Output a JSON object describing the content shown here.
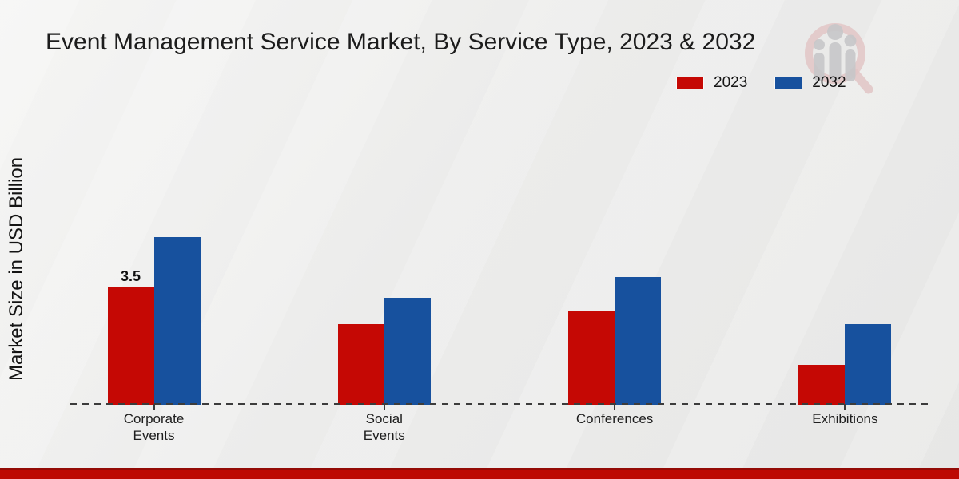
{
  "title": "Event Management Service Market, By Service Type, 2023 & 2032",
  "ylabel": "Market Size in USD Billion",
  "legend": {
    "items": [
      {
        "label": "2023",
        "color": "#c50804"
      },
      {
        "label": "2032",
        "color": "#17519e"
      }
    ]
  },
  "watermark": {
    "name": "market-research-magnifier-logo"
  },
  "chart_data": {
    "type": "bar",
    "categories": [
      "Corporate Events",
      "Social Events",
      "Conferences",
      "Exhibitions"
    ],
    "tick_labels": [
      [
        "Corporate",
        "Events"
      ],
      [
        "Social",
        "Events"
      ],
      [
        "Conferences"
      ],
      [
        "Exhibitions"
      ]
    ],
    "series": [
      {
        "name": "2023",
        "color": "#c50804",
        "values": [
          3.5,
          2.4,
          2.8,
          1.2
        ]
      },
      {
        "name": "2032",
        "color": "#17519e",
        "values": [
          5.0,
          3.2,
          3.8,
          2.4
        ]
      }
    ],
    "annotations": [
      {
        "series_index": 0,
        "category_index": 0,
        "text": "3.5"
      }
    ],
    "title": "Event Management Service Market, By Service Type, 2023 & 2032",
    "xlabel": "",
    "ylabel": "Market Size in USD Billion",
    "ylim": [
      0,
      5.5
    ],
    "grid": false,
    "baseline_style": "dashed",
    "legend_position": "top-right"
  }
}
